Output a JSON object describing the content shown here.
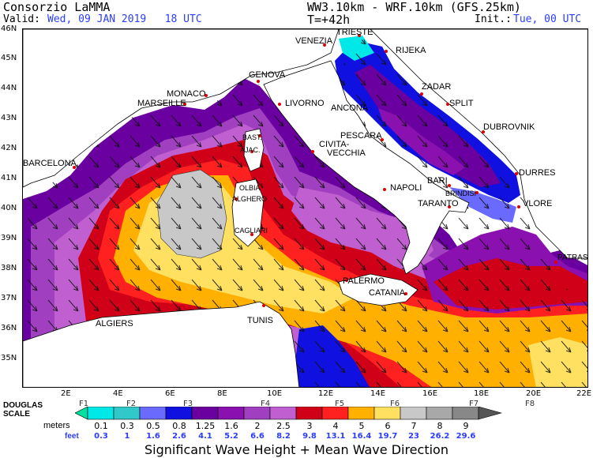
{
  "header": {
    "org": "Consorzio LaMMA",
    "valid_label": "Valid:",
    "valid_value": "Wed, 09 JAN 2019   18 UTC",
    "model": "WW3.10km - WRF.10km (GFS.25km)",
    "step": "T=+42h",
    "init_label": "Init.:",
    "init_value": "Tue, 00 UTC"
  },
  "axes": {
    "lat_ticks": [
      "46N",
      "45N",
      "44N",
      "43N",
      "42N",
      "41N",
      "40N",
      "39N",
      "38N",
      "37N",
      "36N",
      "35N"
    ],
    "lon_ticks": [
      "2E",
      "4E",
      "6E",
      "8E",
      "10E",
      "12E",
      "14E",
      "16E",
      "18E",
      "20E",
      "22E"
    ]
  },
  "cities": [
    "TRIESTE",
    "VENEZIA",
    "RIJEKA",
    "GENOVA",
    "MONACO",
    "MARSEILLE",
    "LIVORNO",
    "ZADAR",
    "ANCONA",
    "SPLIT",
    "DUBROVNIK",
    "BAST.",
    "AJAC.",
    "PESCARA",
    "CIVITA-",
    "VECCHIA",
    "BARCELONA",
    "DURRES",
    "BARI",
    "OLBIA",
    "NAPOLI",
    "BRINDISI",
    "ALGHERO",
    "TARANTO",
    "VLORE",
    "CAGLIARI",
    "PATRAS",
    "PALERMO",
    "CATANIA",
    "ALGIERS",
    "TUNIS"
  ],
  "legend": {
    "scale_title": [
      "DOUGLAS",
      "SCALE"
    ],
    "douglas": [
      "F1",
      "F2",
      "F3",
      "F4",
      "F5",
      "F6",
      "F7",
      "F8"
    ],
    "meters_label": "meters",
    "meters": [
      "0.1",
      "0.3",
      "0.5",
      "0.8",
      "1.25",
      "1.6",
      "2",
      "2.5",
      "3",
      "4",
      "5",
      "6",
      "7",
      "8",
      "9"
    ],
    "feet_label": "feet",
    "feet": [
      "0.3",
      "1",
      "1.6",
      "2.6",
      "4.1",
      "5.2",
      "6.6",
      "8.2",
      "9.8",
      "13.1",
      "16.4",
      "19.7",
      "23",
      "26.2",
      "29.6"
    ],
    "colors": [
      "#00e0a0",
      "#00e8e8",
      "#30c8c8",
      "#6a6aff",
      "#1010e0",
      "#6a00a0",
      "#8a10b0",
      "#a040c0",
      "#c060d0",
      "#d00018",
      "#ff2020",
      "#ffb000",
      "#ffe060",
      "#c8c8c8",
      "#a8a8a8",
      "#888888",
      "#555555"
    ]
  },
  "footer": {
    "title": "Significant Wave Height + Mean Wave Direction"
  }
}
